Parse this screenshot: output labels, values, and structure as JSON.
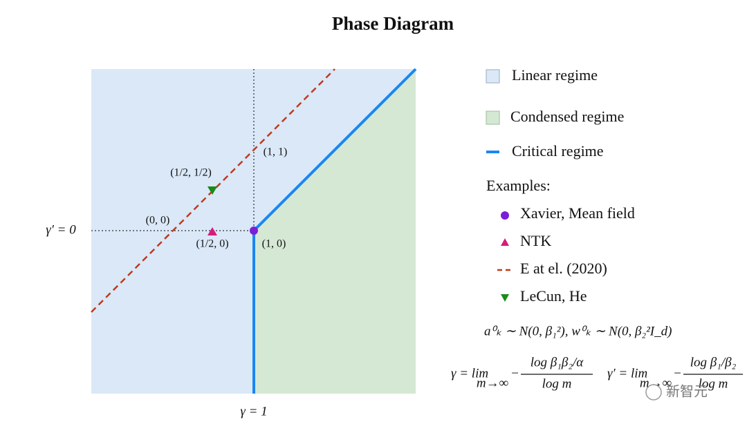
{
  "header": {
    "title": "Phase Diagram"
  },
  "diagram": {
    "axis_labels": {
      "left": "γ′ = 0",
      "bottom": "γ = 1"
    },
    "point_labels": [
      "(1, 1)",
      "(1/2, 1/2)",
      "(0, 0)",
      "(1/2, 0)",
      "(1, 0)"
    ]
  },
  "legend": {
    "regions": [
      "Linear regime",
      "Condensed regime",
      "Critical regime"
    ],
    "examples_title": "Examples:",
    "examples": [
      "Xavier, Mean field",
      "NTK",
      "E at el. (2020)",
      "LeCun, He"
    ]
  },
  "formulas": {
    "init": "a⁰ₖ ∼ N(0, β₁²),   w⁰ₖ ∼ N(0, β₂²I_d)",
    "gamma": {
      "lhs": "γ = lim",
      "sub": "m→∞",
      "sign": "−",
      "num": "log β₁β₂/α",
      "den": "log m"
    },
    "gamma_prime": {
      "lhs": "γ′ = lim",
      "sub": "m→∞",
      "sign": "−",
      "num": "log β₁/β₂",
      "den": "log m"
    }
  },
  "watermark": "新智元"
}
